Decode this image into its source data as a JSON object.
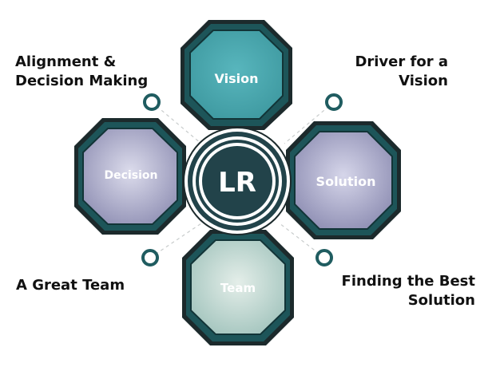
{
  "center": {
    "label": "LR"
  },
  "hexagons": {
    "vision": {
      "label": "Vision"
    },
    "decision": {
      "label": "Decision"
    },
    "solution": {
      "label": "Solution"
    },
    "team": {
      "label": "Team"
    }
  },
  "callouts": {
    "alignment": {
      "line1": "Alignment &",
      "line2": "Decision Making"
    },
    "driver": {
      "line1": "Driver for a",
      "line2": "Vision"
    },
    "great_team": {
      "line1": "A Great Team"
    },
    "best_solution": {
      "line1": "Finding the Best",
      "line2": "Solution"
    }
  },
  "colors": {
    "hex_outline": "#1c2a2c",
    "hex_band": "#1d5559",
    "vision_fill": "#4aa9b0",
    "decision_fill": "#a8a8c8",
    "solution_fill": "#9c9cbc",
    "team_fill": "#b6d2cc",
    "center_ring": "#22434a",
    "connector_circle": "#1f5c60"
  }
}
